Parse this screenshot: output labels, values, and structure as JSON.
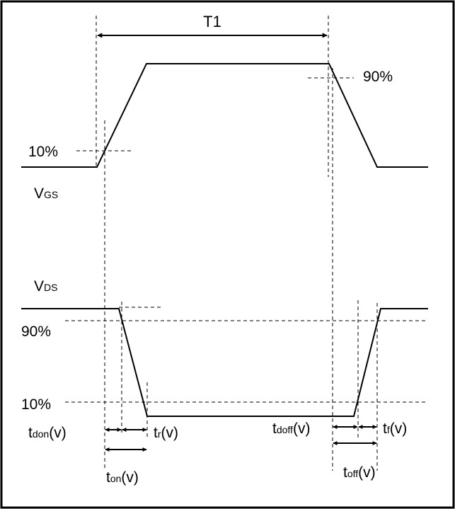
{
  "labels": {
    "period": "T1",
    "vgs_main": "V",
    "vgs_sub": "GS",
    "vds_main": "V",
    "vds_sub": "DS",
    "vgs_90": "90%",
    "vgs_10": "10%",
    "vds_90": "90%",
    "vds_10": "10%",
    "tdon": {
      "main": "t",
      "sub": "don",
      "suffix": "(v)"
    },
    "tr": {
      "main": "t",
      "sub": "r",
      "suffix": "(v)"
    },
    "ton": {
      "main": "t",
      "sub": "on",
      "suffix": "(v)"
    },
    "tdoff": {
      "main": "t",
      "sub": "doff",
      "suffix": "(v)"
    },
    "tf": {
      "main": "t",
      "sub": "f",
      "suffix": "(v)"
    },
    "toff": {
      "main": "t",
      "sub": "off",
      "suffix": "(v)"
    }
  },
  "colors": {
    "line": "#000000",
    "background": "#ffffff"
  }
}
